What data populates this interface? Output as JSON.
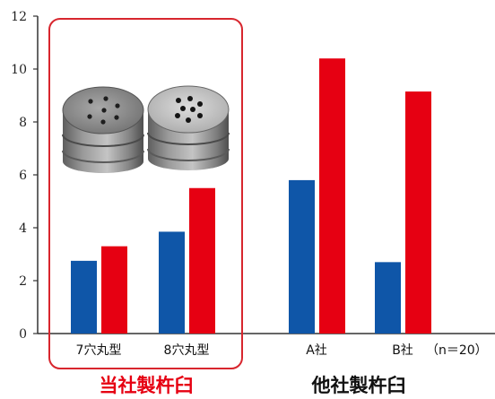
{
  "chart_data": {
    "type": "bar",
    "categories": [
      "7穴丸型",
      "8穴丸型",
      "A社",
      "B社"
    ],
    "series": [
      {
        "values": [
          2.75,
          3.85,
          5.8,
          2.7
        ]
      },
      {
        "values": [
          3.3,
          5.5,
          10.4,
          9.15
        ]
      }
    ],
    "ylim": [
      0,
      12
    ],
    "yticks": [
      0,
      2,
      4,
      6,
      8,
      10,
      12
    ],
    "ytick_labels": [
      "0",
      "2",
      "4",
      "6",
      "8",
      "10",
      "12"
    ],
    "annotation": "（n＝20）",
    "groups": [
      {
        "label": "当社製杵臼",
        "categories": [
          "7穴丸型",
          "8穴丸型"
        ],
        "color": "#e60012"
      },
      {
        "label": "他社製杵臼",
        "categories": [
          "A社",
          "B社"
        ],
        "color": "#111111"
      }
    ],
    "colors": {
      "series_1": "#0f56a8",
      "series_2": "#e60012",
      "highlight_box": "#d8262e"
    }
  }
}
